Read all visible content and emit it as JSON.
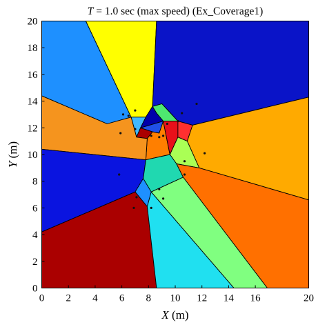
{
  "chart_data": {
    "type": "scatter",
    "title_var": "T",
    "title_rest": " = 1.0 sec (max speed) (Ex_Coverage1)",
    "xlabel_var": "X",
    "xlabel_unit": " (m)",
    "ylabel_var": "Y",
    "ylabel_unit": " (m)",
    "xlim": [
      0,
      20
    ],
    "ylim": [
      0,
      20
    ],
    "xticks": [
      "0",
      "2",
      "4",
      "6",
      "8",
      "10",
      "12",
      "14",
      "16",
      "20"
    ],
    "yticks": [
      "0",
      "2",
      "4",
      "6",
      "8",
      "10",
      "12",
      "14",
      "16",
      "18",
      "20"
    ],
    "xtick_values": [
      0,
      2,
      4,
      6,
      8,
      10,
      12,
      14,
      16,
      20
    ],
    "ytick_values": [
      0,
      2,
      4,
      6,
      8,
      10,
      12,
      14,
      16,
      18,
      20
    ],
    "grid": false,
    "regions": [
      {
        "color": "#1e90ff",
        "points": [
          [
            0,
            20
          ],
          [
            3.3,
            20
          ],
          [
            6.7,
            12.8
          ],
          [
            4.9,
            12.3
          ],
          [
            0,
            14.4
          ]
        ]
      },
      {
        "color": "#ffff00",
        "points": [
          [
            3.3,
            20
          ],
          [
            8.6,
            20
          ],
          [
            8.3,
            13.6
          ],
          [
            7.8,
            12.8
          ],
          [
            6.7,
            12.8
          ]
        ]
      },
      {
        "color": "#0a14c8",
        "points": [
          [
            8.6,
            20
          ],
          [
            20,
            20
          ],
          [
            20,
            14.3
          ],
          [
            11.3,
            12.2
          ],
          [
            10.2,
            12.5
          ],
          [
            9.0,
            13.8
          ],
          [
            8.3,
            13.6
          ]
        ]
      },
      {
        "color": "#4ee870",
        "points": [
          [
            8.3,
            13.6
          ],
          [
            9.0,
            13.8
          ],
          [
            10.2,
            12.5
          ],
          [
            9.1,
            12.5
          ],
          [
            8.6,
            13.1
          ]
        ]
      },
      {
        "color": "#3fb8ff",
        "points": [
          [
            6.7,
            12.8
          ],
          [
            7.8,
            12.8
          ],
          [
            7.4,
            12.0
          ],
          [
            7.1,
            11.3
          ]
        ]
      },
      {
        "color": "#0000aa",
        "points": [
          [
            7.8,
            12.8
          ],
          [
            8.3,
            13.6
          ],
          [
            8.6,
            13.1
          ],
          [
            9.1,
            12.5
          ],
          [
            7.4,
            12.0
          ]
        ]
      },
      {
        "color": "#aa0000",
        "points": [
          [
            7.4,
            12.0
          ],
          [
            8.3,
            11.7
          ],
          [
            7.9,
            11.2
          ],
          [
            7.1,
            11.3
          ]
        ]
      },
      {
        "color": "#2050e8",
        "points": [
          [
            7.4,
            12.0
          ],
          [
            9.1,
            12.5
          ],
          [
            8.8,
            11.6
          ],
          [
            8.3,
            11.7
          ]
        ]
      },
      {
        "color": "#ff7f00",
        "points": [
          [
            7.9,
            11.2
          ],
          [
            8.3,
            11.7
          ],
          [
            8.8,
            11.6
          ],
          [
            9.1,
            12.5
          ],
          [
            9.6,
            10.0
          ],
          [
            7.8,
            9.6
          ]
        ]
      },
      {
        "color": "#e8101a",
        "points": [
          [
            9.1,
            12.5
          ],
          [
            10.2,
            12.5
          ],
          [
            10.2,
            11.3
          ],
          [
            9.6,
            10.0
          ]
        ]
      },
      {
        "color": "#ff3030",
        "points": [
          [
            10.2,
            12.5
          ],
          [
            11.3,
            12.2
          ],
          [
            10.9,
            11.0
          ],
          [
            10.2,
            11.3
          ]
        ]
      },
      {
        "color": "#ffaa00",
        "points": [
          [
            11.3,
            12.2
          ],
          [
            20,
            14.3
          ],
          [
            20,
            6.6
          ],
          [
            11.8,
            9.0
          ],
          [
            10.9,
            11.0
          ]
        ]
      },
      {
        "color": "#aaff55",
        "points": [
          [
            10.2,
            11.3
          ],
          [
            10.9,
            11.0
          ],
          [
            11.8,
            9.0
          ],
          [
            10.1,
            9.3
          ],
          [
            9.6,
            10.0
          ]
        ]
      },
      {
        "color": "#f5941e",
        "points": [
          [
            0,
            14.4
          ],
          [
            4.9,
            12.3
          ],
          [
            6.7,
            12.8
          ],
          [
            7.1,
            11.3
          ],
          [
            7.9,
            11.2
          ],
          [
            7.8,
            9.6
          ],
          [
            0,
            10.4
          ]
        ]
      },
      {
        "color": "#0a14e0",
        "points": [
          [
            0,
            10.4
          ],
          [
            7.8,
            9.6
          ],
          [
            7.6,
            8.2
          ],
          [
            7.0,
            7.2
          ],
          [
            0,
            4.2
          ]
        ]
      },
      {
        "color": "#20d8b0",
        "points": [
          [
            7.8,
            9.6
          ],
          [
            9.6,
            10.0
          ],
          [
            10.1,
            9.3
          ],
          [
            10.6,
            8.3
          ],
          [
            8.2,
            7.2
          ],
          [
            7.6,
            8.2
          ]
        ]
      },
      {
        "color": "#1e90ff",
        "points": [
          [
            7.6,
            8.2
          ],
          [
            8.2,
            7.2
          ],
          [
            7.9,
            6.1
          ],
          [
            7.0,
            7.2
          ]
        ]
      },
      {
        "color": "#aa0000",
        "points": [
          [
            0,
            0
          ],
          [
            8.6,
            0
          ],
          [
            7.9,
            6.1
          ],
          [
            7.0,
            7.2
          ],
          [
            0,
            4.2
          ]
        ]
      },
      {
        "color": "#20e0f0",
        "points": [
          [
            8.6,
            0
          ],
          [
            14.4,
            0
          ],
          [
            8.2,
            7.2
          ],
          [
            7.9,
            6.1
          ]
        ]
      },
      {
        "color": "#80ff80",
        "points": [
          [
            14.4,
            0
          ],
          [
            16.9,
            0
          ],
          [
            10.6,
            8.3
          ],
          [
            8.2,
            7.2
          ]
        ]
      },
      {
        "color": "#ff7000",
        "points": [
          [
            10.1,
            9.3
          ],
          [
            11.8,
            9.0
          ],
          [
            20,
            6.6
          ],
          [
            20,
            0
          ],
          [
            16.9,
            0
          ],
          [
            10.6,
            8.3
          ]
        ]
      }
    ],
    "agents": [
      [
        7.0,
        13.3
      ],
      [
        6.1,
        13.0
      ],
      [
        6.5,
        12.9
      ],
      [
        7.0,
        11.9
      ],
      [
        5.9,
        11.6
      ],
      [
        9.4,
        12.3
      ],
      [
        9.1,
        11.4
      ],
      [
        8.8,
        11.3
      ],
      [
        10.5,
        13.1
      ],
      [
        10.2,
        12.5
      ],
      [
        11.6,
        13.8
      ],
      [
        8.2,
        11.4
      ],
      [
        12.2,
        10.1
      ],
      [
        10.7,
        9.5
      ],
      [
        10.7,
        8.5
      ],
      [
        5.8,
        8.5
      ],
      [
        8.8,
        7.4
      ],
      [
        9.1,
        6.7
      ],
      [
        7.1,
        6.8
      ],
      [
        6.9,
        6.0
      ],
      [
        8.2,
        6.0
      ]
    ]
  }
}
